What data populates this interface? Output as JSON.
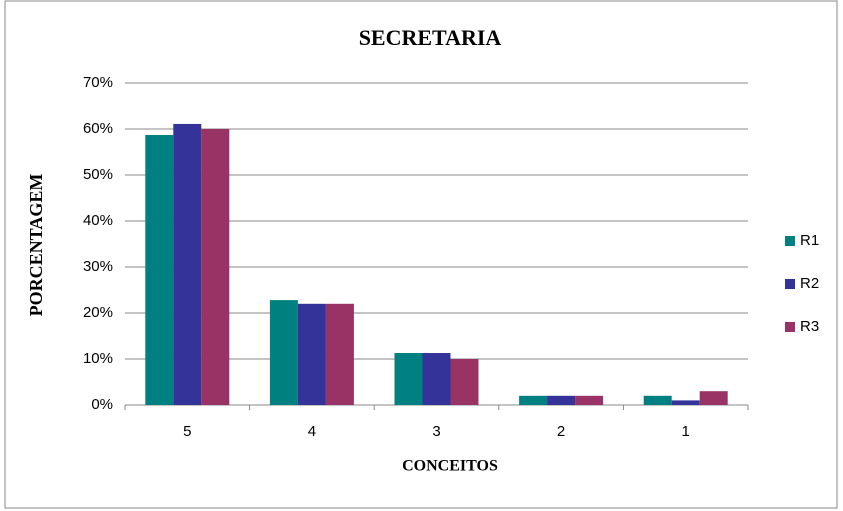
{
  "chart_data": {
    "type": "bar",
    "title": "SECRETARIA",
    "x_label": "CONCEITOS",
    "y_label": "PORCENTAGEM",
    "categories": [
      "5",
      "4",
      "3",
      "2",
      "1"
    ],
    "series": [
      {
        "name": "R1",
        "color": "#008080",
        "values": [
          58.7,
          22.8,
          11.3,
          2,
          2
        ]
      },
      {
        "name": "R2",
        "color": "#333399",
        "values": [
          61.1,
          22,
          11.3,
          2,
          1
        ]
      },
      {
        "name": "R3",
        "color": "#993366",
        "values": [
          60,
          22,
          10,
          2,
          3
        ]
      }
    ],
    "ylim": [
      0,
      70
    ],
    "yticks": [
      {
        "value": 0,
        "label": "0%"
      },
      {
        "value": 10,
        "label": "10%"
      },
      {
        "value": 20,
        "label": "20%"
      },
      {
        "value": 30,
        "label": "30%"
      },
      {
        "value": 40,
        "label": "40%"
      },
      {
        "value": 50,
        "label": "50%"
      },
      {
        "value": 60,
        "label": "60%"
      },
      {
        "value": 70,
        "label": "70%"
      }
    ],
    "grid": true,
    "legend": "right"
  }
}
